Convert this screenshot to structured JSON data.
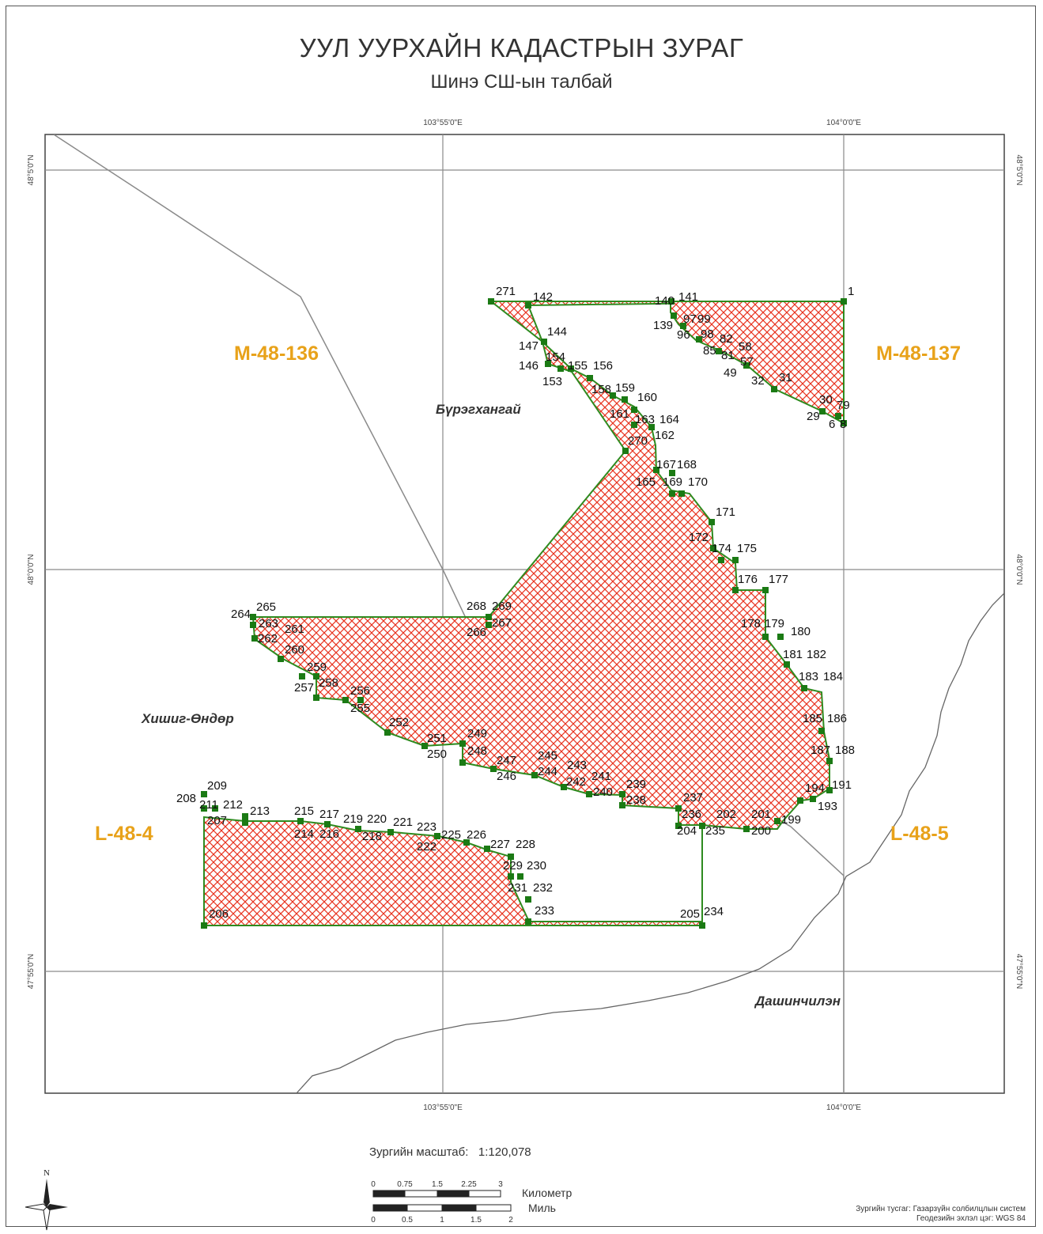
{
  "title": "УУЛ УУРХАЙН КАДАСТРЫН ЗУРАГ",
  "subtitle": "Шинэ СШ-ын талбай",
  "graticule": {
    "lon_labels": [
      "103°55'0\"E",
      "104°0'0\"E"
    ],
    "lat_labels": [
      "48°5'0\"N",
      "48°0'0\"N",
      "47°55'0\"N"
    ]
  },
  "sheets": [
    "M-48-136",
    "M-48-137",
    "L-48-4",
    "L-48-5"
  ],
  "places": [
    "Бүрэгхангай",
    "Хишиг-Өндөр",
    "Дашинчилэн"
  ],
  "vertex_labels": {
    "north": [
      "271",
      "142",
      "144",
      "147",
      "154",
      "146",
      "153",
      "155",
      "156",
      "158",
      "159",
      "160",
      "161",
      "163",
      "164",
      "162",
      "270",
      "167",
      "168",
      "165",
      "169",
      "170",
      "171",
      "172",
      "174",
      "175",
      "176",
      "177",
      "178",
      "179",
      "180",
      "181",
      "182",
      "183",
      "184",
      "185",
      "186",
      "187",
      "188",
      "191",
      "194",
      "193",
      "199",
      "201",
      "200",
      "202",
      "235",
      "204",
      "236",
      "237",
      "239",
      "238",
      "241",
      "240",
      "243",
      "242",
      "245",
      "244",
      "247",
      "246",
      "249",
      "248",
      "251",
      "250",
      "252",
      "256",
      "255",
      "259",
      "258",
      "257",
      "260",
      "261",
      "262",
      "263",
      "264",
      "265",
      "266",
      "267",
      "268",
      "269"
    ],
    "northeast": [
      "1",
      "140",
      "141",
      "139",
      "97",
      "99",
      "96",
      "98",
      "82",
      "58",
      "85",
      "81",
      "57",
      "49",
      "32",
      "31",
      "30",
      "79",
      "29",
      "6",
      "8"
    ],
    "south": [
      "209",
      "208",
      "211",
      "212",
      "213",
      "207",
      "215",
      "217",
      "214",
      "216",
      "219",
      "220",
      "221",
      "218",
      "223",
      "222",
      "225",
      "226",
      "227",
      "228",
      "229",
      "230",
      "231",
      "232",
      "233",
      "206",
      "205",
      "234"
    ]
  },
  "scale": {
    "label": "Зургийн масштаб:",
    "value": "1:120,078"
  },
  "scalebar": {
    "km_ticks": [
      "0",
      "0.75",
      "1.5",
      "2.25",
      "3"
    ],
    "km_unit": "Километр",
    "mi_ticks": [
      "0",
      "0.5",
      "1",
      "1.5",
      "2"
    ],
    "mi_unit": "Миль"
  },
  "north_arrow": "N",
  "credits": {
    "projection": "Зургийн тусгаг: Газарзүйн солбилцлын систем",
    "datum": "Геодезийн эхлэл цэг: WGS 84"
  },
  "colors": {
    "hatch": "#e8331f",
    "boundary": "#2e8b1f",
    "vertex": "#1b7a14",
    "sheet_label": "#e8a21a",
    "graticule": "#7a7a7a",
    "river": "#666666"
  }
}
